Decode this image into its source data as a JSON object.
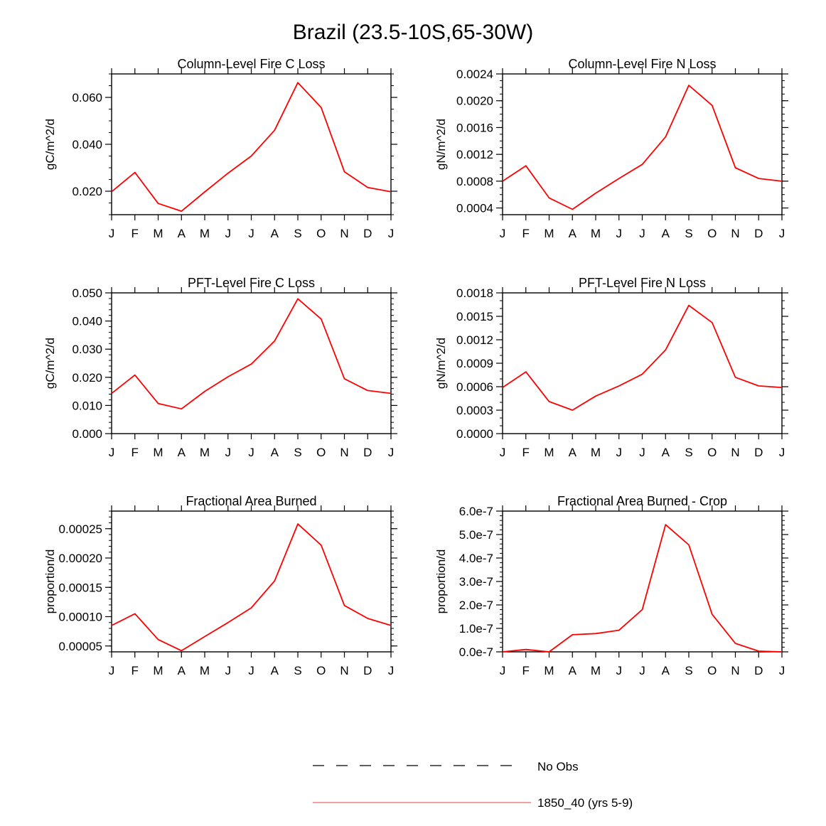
{
  "page_title": "Brazil (23.5-10S,65-30W)",
  "colors": {
    "series": "#ff0000",
    "obs": "#000000",
    "legend_series": "#f08080"
  },
  "legend": [
    {
      "label": "No Obs",
      "style": "dashed"
    },
    {
      "label": "1850_40 (yrs 5-9)",
      "style": "solid"
    }
  ],
  "chart_data": [
    {
      "type": "line",
      "title": "Column-Level Fire C Loss",
      "ylabel": "gC/m^2/d",
      "categories": [
        "J",
        "F",
        "M",
        "A",
        "M",
        "J",
        "J",
        "A",
        "S",
        "O",
        "N",
        "D",
        "J"
      ],
      "ylim": [
        0.01,
        0.07
      ],
      "yticks": [
        0.02,
        0.04,
        0.06
      ],
      "ytick_labels": [
        "0.020",
        "0.040",
        "0.060"
      ],
      "minor_step": 0.005,
      "series": [
        {
          "name": "1850_40 (yrs 5-9)",
          "values": [
            0.0198,
            0.028,
            0.0148,
            0.0115,
            0.0197,
            0.0277,
            0.035,
            0.046,
            0.0663,
            0.0557,
            0.0283,
            0.0216,
            0.0198
          ]
        }
      ]
    },
    {
      "type": "line",
      "title": "Column-Level Fire N Loss",
      "ylabel": "gN/m^2/d",
      "categories": [
        "J",
        "F",
        "M",
        "A",
        "M",
        "J",
        "J",
        "A",
        "S",
        "O",
        "N",
        "D",
        "J"
      ],
      "ylim": [
        0.0003,
        0.0024
      ],
      "yticks": [
        0.0004,
        0.0008,
        0.0012,
        0.0016,
        0.002,
        0.0024
      ],
      "ytick_labels": [
        "0.0004",
        "0.0008",
        "0.0012",
        "0.0016",
        "0.0020",
        "0.0024"
      ],
      "minor_step": 0.0001,
      "series": [
        {
          "name": "1850_40 (yrs 5-9)",
          "values": [
            0.0008,
            0.00103,
            0.00055,
            0.00038,
            0.00062,
            0.00084,
            0.00105,
            0.00146,
            0.00223,
            0.00193,
            0.001,
            0.00084,
            0.0008
          ]
        }
      ]
    },
    {
      "type": "line",
      "title": "PFT-Level Fire C Loss",
      "ylabel": "gC/m^2/d",
      "categories": [
        "J",
        "F",
        "M",
        "A",
        "M",
        "J",
        "J",
        "A",
        "S",
        "O",
        "N",
        "D",
        "J"
      ],
      "ylim": [
        0.0,
        0.05
      ],
      "yticks": [
        0.0,
        0.01,
        0.02,
        0.03,
        0.04,
        0.05
      ],
      "ytick_labels": [
        "0.000",
        "0.010",
        "0.020",
        "0.030",
        "0.040",
        "0.050"
      ],
      "minor_step": 0.002,
      "series": [
        {
          "name": "1850_40 (yrs 5-9)",
          "values": [
            0.0143,
            0.0208,
            0.0107,
            0.0088,
            0.015,
            0.0202,
            0.0247,
            0.0329,
            0.0479,
            0.0407,
            0.0195,
            0.0153,
            0.0143
          ]
        }
      ]
    },
    {
      "type": "line",
      "title": "PFT-Level Fire N Loss",
      "ylabel": "gN/m^2/d",
      "categories": [
        "J",
        "F",
        "M",
        "A",
        "M",
        "J",
        "J",
        "A",
        "S",
        "O",
        "N",
        "D",
        "J"
      ],
      "ylim": [
        0.0,
        0.0018
      ],
      "yticks": [
        0.0,
        0.0003,
        0.0006,
        0.0009,
        0.0012,
        0.0015,
        0.0018
      ],
      "ytick_labels": [
        "0.0000",
        "0.0003",
        "0.0006",
        "0.0009",
        "0.0012",
        "0.0015",
        "0.0018"
      ],
      "minor_step": 0.0001,
      "series": [
        {
          "name": "1850_40 (yrs 5-9)",
          "values": [
            0.00059,
            0.00079,
            0.00041,
            0.0003,
            0.00048,
            0.00061,
            0.00076,
            0.00107,
            0.00164,
            0.00142,
            0.00072,
            0.00061,
            0.00059
          ]
        }
      ]
    },
    {
      "type": "line",
      "title": "Fractional Area Burned",
      "ylabel": "proportion/d",
      "categories": [
        "J",
        "F",
        "M",
        "A",
        "M",
        "J",
        "J",
        "A",
        "S",
        "O",
        "N",
        "D",
        "J"
      ],
      "ylim": [
        4e-05,
        0.00028
      ],
      "yticks": [
        5e-05,
        0.0001,
        0.00015,
        0.0002,
        0.00025
      ],
      "ytick_labels": [
        "0.00005",
        "0.00010",
        "0.00015",
        "0.00020",
        "0.00025"
      ],
      "minor_step": 1e-05,
      "series": [
        {
          "name": "1850_40 (yrs 5-9)",
          "values": [
            8.5e-05,
            0.000105,
            6.1e-05,
            4.2e-05,
            6.6e-05,
            9e-05,
            0.000115,
            0.000161,
            0.000258,
            0.000222,
            0.000119,
            9.7e-05,
            8.5e-05
          ]
        }
      ]
    },
    {
      "type": "line",
      "title": "Fractional Area Burned - Crop",
      "ylabel": "proportion/d",
      "categories": [
        "J",
        "F",
        "M",
        "A",
        "M",
        "J",
        "J",
        "A",
        "S",
        "O",
        "N",
        "D",
        "J"
      ],
      "ylim": [
        0.0,
        6e-07
      ],
      "yticks": [
        0.0,
        1e-07,
        2e-07,
        3e-07,
        4e-07,
        5e-07,
        6e-07
      ],
      "ytick_labels": [
        "0.0e-7",
        "1.0e-7",
        "2.0e-7",
        "3.0e-7",
        "4.0e-7",
        "5.0e-7",
        "6.0e-7"
      ],
      "minor_step": 2e-08,
      "series": [
        {
          "name": "1850_40 (yrs 5-9)",
          "values": [
            0.0,
            1e-08,
            0.0,
            7.3e-08,
            7.8e-08,
            9.2e-08,
            1.8e-07,
            5.42e-07,
            4.56e-07,
            1.6e-07,
            3.6e-08,
            3e-09,
            0.0
          ]
        }
      ]
    }
  ]
}
